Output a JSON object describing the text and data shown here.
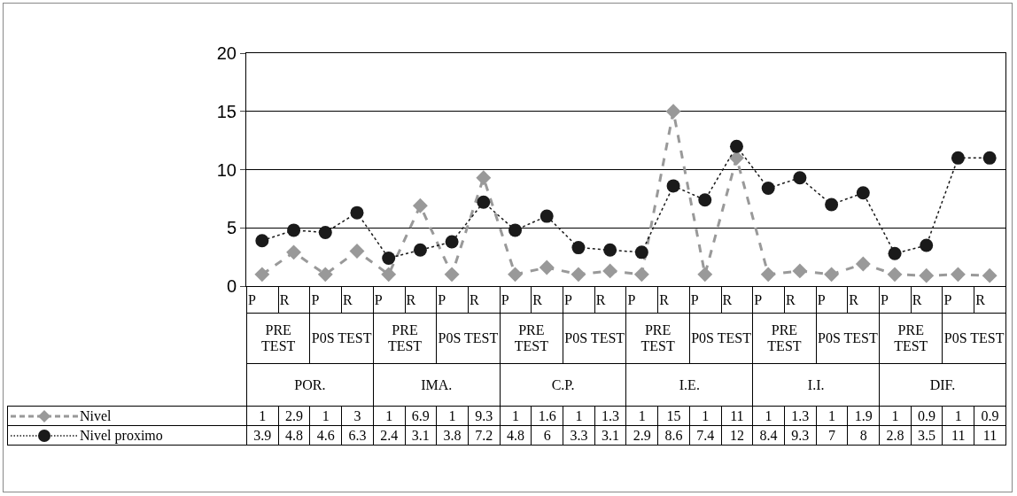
{
  "chart_data": {
    "type": "line",
    "categories": [
      "P",
      "R",
      "P",
      "R",
      "P",
      "R",
      "P",
      "R",
      "P",
      "R",
      "P",
      "R",
      "P",
      "R",
      "P",
      "R",
      "P",
      "R",
      "P",
      "R",
      "P",
      "R",
      "P",
      "R"
    ],
    "annotations": [
      "PRE TEST",
      "P0S TEST",
      "PRE TEST",
      "P0S TEST",
      "PRE TEST",
      "P0S TEST",
      "PRE TEST",
      "P0S TEST",
      "PRE TEST",
      "P0S TEST",
      "PRE TEST",
      "P0S TEST",
      "POR.",
      "IMA.",
      "C.P.",
      "I.E.",
      "I.I.",
      "DIF."
    ],
    "series": [
      {
        "name": "Nivel",
        "color": "#999999",
        "marker": "diamond",
        "line_style": "dashed",
        "values": [
          1,
          2.9,
          1,
          3,
          1,
          6.9,
          1,
          9.3,
          1,
          1.6,
          1,
          1.3,
          1,
          15,
          1,
          11,
          1,
          1.3,
          1,
          1.9,
          1,
          0.9,
          1,
          0.9
        ]
      },
      {
        "name": "Nivel proximo",
        "color": "#1a1a1a",
        "marker": "circle",
        "line_style": "dotted",
        "values": [
          3.9,
          4.8,
          4.6,
          6.3,
          2.4,
          3.1,
          3.8,
          7.2,
          4.8,
          6,
          3.3,
          3.1,
          2.9,
          8.6,
          7.4,
          12,
          8.4,
          9.3,
          7,
          8,
          2.8,
          3.5,
          11,
          11
        ]
      }
    ],
    "ylim": [
      0,
      20
    ],
    "yticks": [
      0,
      5,
      10,
      15,
      20
    ],
    "grid": "y",
    "legend": "bottom left",
    "data_labels": true
  }
}
